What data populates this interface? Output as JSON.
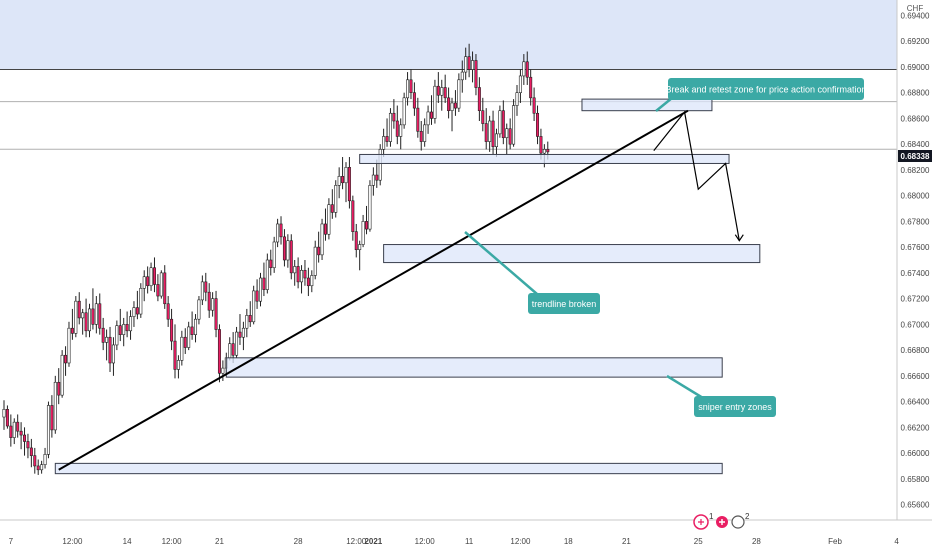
{
  "chart_data": {
    "type": "candlestick",
    "currency": "CHF",
    "y_ticks": [
      "0.69400",
      "0.69200",
      "0.69000",
      "0.68800",
      "0.68600",
      "0.68400",
      "0.68200",
      "0.68000",
      "0.67800",
      "0.67600",
      "0.67400",
      "0.67200",
      "0.67000",
      "0.66800",
      "0.66600",
      "0.66400",
      "0.66200",
      "0.66000",
      "0.65800",
      "0.65600"
    ],
    "ylim": [
      0.6548,
      0.6952
    ],
    "x_ticks": [
      {
        "label": "7",
        "bar": 2
      },
      {
        "label": "12:00",
        "bar": 20
      },
      {
        "label": "14",
        "bar": 36
      },
      {
        "label": "12:00",
        "bar": 49
      },
      {
        "label": "21",
        "bar": 63
      },
      {
        "label": "28",
        "bar": 86
      },
      {
        "label": "12:00",
        "bar": 103
      },
      {
        "label": "2021",
        "bar": 108,
        "bold": true
      },
      {
        "label": "12:00",
        "bar": 123
      },
      {
        "label": "11",
        "bar": 136
      },
      {
        "label": "12:00",
        "bar": 151
      },
      {
        "label": "18",
        "bar": 165
      },
      {
        "label": "21",
        "bar": 182
      },
      {
        "label": "25",
        "bar": 203
      },
      {
        "label": "28",
        "bar": 220
      },
      {
        "label": "Feb",
        "bar": 243
      },
      {
        "label": "4",
        "bar": 261
      }
    ],
    "current_price": "0.68338",
    "horizontal_lines": [
      0.6898,
      0.6873,
      0.6836
    ],
    "resistance_zone": {
      "from": 0.6898,
      "to": 0.6952
    },
    "zones": [
      {
        "x0": 104,
        "x1": 212,
        "y_top": 0.6832,
        "y_bot": 0.6825
      },
      {
        "x0": 169,
        "x1": 207,
        "y_top": 0.6875,
        "y_bot": 0.6866
      },
      {
        "x0": 111,
        "x1": 221,
        "y_top": 0.6762,
        "y_bot": 0.6748
      },
      {
        "x0": 65,
        "x1": 210,
        "y_top": 0.6674,
        "y_bot": 0.6659
      },
      {
        "x0": 15,
        "x1": 210,
        "y_top": 0.6592,
        "y_bot": 0.6584
      }
    ],
    "trendline": {
      "x0": 16,
      "y0": 0.6587,
      "x1": 200,
      "y1": 0.6866
    },
    "projection_path": [
      [
        190,
        0.6835
      ],
      [
        199,
        0.6865
      ],
      [
        203,
        0.6805
      ],
      [
        211,
        0.6825
      ],
      [
        215,
        0.6765
      ]
    ],
    "candles": [
      {
        "o": 0.6628,
        "h": 0.6641,
        "l": 0.6618,
        "c": 0.6634
      },
      {
        "o": 0.6634,
        "h": 0.6637,
        "l": 0.6619,
        "c": 0.6621
      },
      {
        "o": 0.6621,
        "h": 0.663,
        "l": 0.6605,
        "c": 0.6612
      },
      {
        "o": 0.6612,
        "h": 0.6627,
        "l": 0.6607,
        "c": 0.6624
      },
      {
        "o": 0.6624,
        "h": 0.663,
        "l": 0.6612,
        "c": 0.6617
      },
      {
        "o": 0.6617,
        "h": 0.6624,
        "l": 0.6603,
        "c": 0.6614
      },
      {
        "o": 0.6614,
        "h": 0.662,
        "l": 0.6598,
        "c": 0.6609
      },
      {
        "o": 0.6609,
        "h": 0.6615,
        "l": 0.6596,
        "c": 0.6604
      },
      {
        "o": 0.6604,
        "h": 0.6611,
        "l": 0.6589,
        "c": 0.6598
      },
      {
        "o": 0.6598,
        "h": 0.6604,
        "l": 0.6584,
        "c": 0.659
      },
      {
        "o": 0.659,
        "h": 0.6595,
        "l": 0.6583,
        "c": 0.6587
      },
      {
        "o": 0.6587,
        "h": 0.6594,
        "l": 0.6584,
        "c": 0.6591
      },
      {
        "o": 0.6591,
        "h": 0.6604,
        "l": 0.6588,
        "c": 0.6599
      },
      {
        "o": 0.6599,
        "h": 0.664,
        "l": 0.6596,
        "c": 0.6637
      },
      {
        "o": 0.6637,
        "h": 0.6645,
        "l": 0.6612,
        "c": 0.6618
      },
      {
        "o": 0.6618,
        "h": 0.666,
        "l": 0.6615,
        "c": 0.6655
      },
      {
        "o": 0.6655,
        "h": 0.6666,
        "l": 0.6638,
        "c": 0.6645
      },
      {
        "o": 0.6645,
        "h": 0.668,
        "l": 0.6643,
        "c": 0.6676
      },
      {
        "o": 0.6676,
        "h": 0.6683,
        "l": 0.666,
        "c": 0.667
      },
      {
        "o": 0.667,
        "h": 0.6702,
        "l": 0.6667,
        "c": 0.6697
      },
      {
        "o": 0.6697,
        "h": 0.6712,
        "l": 0.6688,
        "c": 0.6693
      },
      {
        "o": 0.6693,
        "h": 0.6722,
        "l": 0.669,
        "c": 0.6718
      },
      {
        "o": 0.6718,
        "h": 0.6725,
        "l": 0.67,
        "c": 0.6705
      },
      {
        "o": 0.6705,
        "h": 0.6712,
        "l": 0.6692,
        "c": 0.6709
      },
      {
        "o": 0.6709,
        "h": 0.672,
        "l": 0.669,
        "c": 0.6695
      },
      {
        "o": 0.6695,
        "h": 0.6716,
        "l": 0.669,
        "c": 0.6712
      },
      {
        "o": 0.6712,
        "h": 0.6728,
        "l": 0.6696,
        "c": 0.67
      },
      {
        "o": 0.67,
        "h": 0.6722,
        "l": 0.6693,
        "c": 0.6716
      },
      {
        "o": 0.6716,
        "h": 0.6724,
        "l": 0.6692,
        "c": 0.6697
      },
      {
        "o": 0.6697,
        "h": 0.6705,
        "l": 0.668,
        "c": 0.6686
      },
      {
        "o": 0.6686,
        "h": 0.6696,
        "l": 0.6672,
        "c": 0.669
      },
      {
        "o": 0.669,
        "h": 0.6698,
        "l": 0.6663,
        "c": 0.667
      },
      {
        "o": 0.667,
        "h": 0.669,
        "l": 0.666,
        "c": 0.6684
      },
      {
        "o": 0.6684,
        "h": 0.6703,
        "l": 0.668,
        "c": 0.6699
      },
      {
        "o": 0.6699,
        "h": 0.6712,
        "l": 0.6687,
        "c": 0.6692
      },
      {
        "o": 0.6692,
        "h": 0.6705,
        "l": 0.6683,
        "c": 0.67
      },
      {
        "o": 0.67,
        "h": 0.671,
        "l": 0.669,
        "c": 0.6695
      },
      {
        "o": 0.6695,
        "h": 0.6711,
        "l": 0.6688,
        "c": 0.6706
      },
      {
        "o": 0.6706,
        "h": 0.6718,
        "l": 0.6698,
        "c": 0.6713
      },
      {
        "o": 0.6713,
        "h": 0.6726,
        "l": 0.6704,
        "c": 0.6708
      },
      {
        "o": 0.6708,
        "h": 0.6732,
        "l": 0.6705,
        "c": 0.6728
      },
      {
        "o": 0.6728,
        "h": 0.6742,
        "l": 0.6718,
        "c": 0.6737
      },
      {
        "o": 0.6737,
        "h": 0.6745,
        "l": 0.6724,
        "c": 0.673
      },
      {
        "o": 0.673,
        "h": 0.6748,
        "l": 0.6726,
        "c": 0.6744
      },
      {
        "o": 0.6744,
        "h": 0.6752,
        "l": 0.6725,
        "c": 0.6731
      },
      {
        "o": 0.6731,
        "h": 0.6739,
        "l": 0.6718,
        "c": 0.6722
      },
      {
        "o": 0.6722,
        "h": 0.6742,
        "l": 0.672,
        "c": 0.674
      },
      {
        "o": 0.674,
        "h": 0.6746,
        "l": 0.6712,
        "c": 0.6716
      },
      {
        "o": 0.6716,
        "h": 0.6722,
        "l": 0.6698,
        "c": 0.6704
      },
      {
        "o": 0.6704,
        "h": 0.6712,
        "l": 0.668,
        "c": 0.6687
      },
      {
        "o": 0.6687,
        "h": 0.67,
        "l": 0.6658,
        "c": 0.6665
      },
      {
        "o": 0.6665,
        "h": 0.6676,
        "l": 0.6658,
        "c": 0.6672
      },
      {
        "o": 0.6672,
        "h": 0.6695,
        "l": 0.6668,
        "c": 0.669
      },
      {
        "o": 0.669,
        "h": 0.6697,
        "l": 0.6677,
        "c": 0.6682
      },
      {
        "o": 0.6682,
        "h": 0.6702,
        "l": 0.668,
        "c": 0.6698
      },
      {
        "o": 0.6698,
        "h": 0.671,
        "l": 0.6688,
        "c": 0.6692
      },
      {
        "o": 0.6692,
        "h": 0.6708,
        "l": 0.6686,
        "c": 0.6704
      },
      {
        "o": 0.6704,
        "h": 0.6722,
        "l": 0.67,
        "c": 0.6719
      },
      {
        "o": 0.6719,
        "h": 0.6738,
        "l": 0.6715,
        "c": 0.6733
      },
      {
        "o": 0.6733,
        "h": 0.674,
        "l": 0.6718,
        "c": 0.6725
      },
      {
        "o": 0.6725,
        "h": 0.6732,
        "l": 0.6705,
        "c": 0.6711
      },
      {
        "o": 0.6711,
        "h": 0.6725,
        "l": 0.6706,
        "c": 0.672
      },
      {
        "o": 0.672,
        "h": 0.6726,
        "l": 0.669,
        "c": 0.6696
      },
      {
        "o": 0.6696,
        "h": 0.67,
        "l": 0.6655,
        "c": 0.6662
      },
      {
        "o": 0.6662,
        "h": 0.6672,
        "l": 0.6656,
        "c": 0.6666
      },
      {
        "o": 0.6666,
        "h": 0.6678,
        "l": 0.666,
        "c": 0.6674
      },
      {
        "o": 0.6674,
        "h": 0.669,
        "l": 0.6672,
        "c": 0.6685
      },
      {
        "o": 0.6685,
        "h": 0.6694,
        "l": 0.667,
        "c": 0.6676
      },
      {
        "o": 0.6676,
        "h": 0.6698,
        "l": 0.6674,
        "c": 0.6694
      },
      {
        "o": 0.6694,
        "h": 0.6708,
        "l": 0.6684,
        "c": 0.669
      },
      {
        "o": 0.669,
        "h": 0.6702,
        "l": 0.668,
        "c": 0.6697
      },
      {
        "o": 0.6697,
        "h": 0.6712,
        "l": 0.669,
        "c": 0.6707
      },
      {
        "o": 0.6707,
        "h": 0.6718,
        "l": 0.6698,
        "c": 0.6702
      },
      {
        "o": 0.6702,
        "h": 0.673,
        "l": 0.67,
        "c": 0.6726
      },
      {
        "o": 0.6726,
        "h": 0.6735,
        "l": 0.6712,
        "c": 0.6718
      },
      {
        "o": 0.6718,
        "h": 0.674,
        "l": 0.6714,
        "c": 0.6736
      },
      {
        "o": 0.6736,
        "h": 0.6748,
        "l": 0.6722,
        "c": 0.6727
      },
      {
        "o": 0.6727,
        "h": 0.6755,
        "l": 0.6724,
        "c": 0.675
      },
      {
        "o": 0.675,
        "h": 0.6758,
        "l": 0.6738,
        "c": 0.6744
      },
      {
        "o": 0.6744,
        "h": 0.6768,
        "l": 0.674,
        "c": 0.6764
      },
      {
        "o": 0.6764,
        "h": 0.6782,
        "l": 0.676,
        "c": 0.6778
      },
      {
        "o": 0.6778,
        "h": 0.6784,
        "l": 0.6762,
        "c": 0.6768
      },
      {
        "o": 0.6768,
        "h": 0.6774,
        "l": 0.6745,
        "c": 0.675
      },
      {
        "o": 0.675,
        "h": 0.677,
        "l": 0.6744,
        "c": 0.6765
      },
      {
        "o": 0.6765,
        "h": 0.677,
        "l": 0.6735,
        "c": 0.674
      },
      {
        "o": 0.674,
        "h": 0.675,
        "l": 0.673,
        "c": 0.6745
      },
      {
        "o": 0.6745,
        "h": 0.6752,
        "l": 0.6728,
        "c": 0.6733
      },
      {
        "o": 0.6733,
        "h": 0.6746,
        "l": 0.6724,
        "c": 0.6742
      },
      {
        "o": 0.6742,
        "h": 0.675,
        "l": 0.673,
        "c": 0.6736
      },
      {
        "o": 0.6736,
        "h": 0.6744,
        "l": 0.6722,
        "c": 0.673
      },
      {
        "o": 0.673,
        "h": 0.6742,
        "l": 0.6725,
        "c": 0.6738
      },
      {
        "o": 0.6738,
        "h": 0.6765,
        "l": 0.6735,
        "c": 0.676
      },
      {
        "o": 0.676,
        "h": 0.6772,
        "l": 0.6748,
        "c": 0.6754
      },
      {
        "o": 0.6754,
        "h": 0.6782,
        "l": 0.675,
        "c": 0.6778
      },
      {
        "o": 0.6778,
        "h": 0.679,
        "l": 0.6765,
        "c": 0.677
      },
      {
        "o": 0.677,
        "h": 0.6798,
        "l": 0.6766,
        "c": 0.6793
      },
      {
        "o": 0.6793,
        "h": 0.6805,
        "l": 0.6782,
        "c": 0.6787
      },
      {
        "o": 0.6787,
        "h": 0.6812,
        "l": 0.6783,
        "c": 0.6808
      },
      {
        "o": 0.6808,
        "h": 0.6822,
        "l": 0.6798,
        "c": 0.6815
      },
      {
        "o": 0.6815,
        "h": 0.683,
        "l": 0.6805,
        "c": 0.681
      },
      {
        "o": 0.681,
        "h": 0.6826,
        "l": 0.6795,
        "c": 0.6822
      },
      {
        "o": 0.6822,
        "h": 0.683,
        "l": 0.679,
        "c": 0.6796
      },
      {
        "o": 0.6796,
        "h": 0.68,
        "l": 0.6765,
        "c": 0.6772
      },
      {
        "o": 0.6772,
        "h": 0.6778,
        "l": 0.6752,
        "c": 0.6758
      },
      {
        "o": 0.6758,
        "h": 0.6765,
        "l": 0.6742,
        "c": 0.6762
      },
      {
        "o": 0.6762,
        "h": 0.6785,
        "l": 0.676,
        "c": 0.678
      },
      {
        "o": 0.678,
        "h": 0.6792,
        "l": 0.677,
        "c": 0.6774
      },
      {
        "o": 0.6774,
        "h": 0.6812,
        "l": 0.6772,
        "c": 0.6808
      },
      {
        "o": 0.6808,
        "h": 0.6822,
        "l": 0.68,
        "c": 0.6816
      },
      {
        "o": 0.6816,
        "h": 0.6828,
        "l": 0.6806,
        "c": 0.6812
      },
      {
        "o": 0.6812,
        "h": 0.684,
        "l": 0.6808,
        "c": 0.6836
      },
      {
        "o": 0.6836,
        "h": 0.6852,
        "l": 0.683,
        "c": 0.6846
      },
      {
        "o": 0.6846,
        "h": 0.686,
        "l": 0.6838,
        "c": 0.6842
      },
      {
        "o": 0.6842,
        "h": 0.6868,
        "l": 0.6838,
        "c": 0.6864
      },
      {
        "o": 0.6864,
        "h": 0.6875,
        "l": 0.6852,
        "c": 0.6858
      },
      {
        "o": 0.6858,
        "h": 0.687,
        "l": 0.684,
        "c": 0.6846
      },
      {
        "o": 0.6846,
        "h": 0.686,
        "l": 0.6836,
        "c": 0.6855
      },
      {
        "o": 0.6855,
        "h": 0.688,
        "l": 0.6852,
        "c": 0.6876
      },
      {
        "o": 0.6876,
        "h": 0.6896,
        "l": 0.687,
        "c": 0.689
      },
      {
        "o": 0.689,
        "h": 0.6898,
        "l": 0.6875,
        "c": 0.688
      },
      {
        "o": 0.688,
        "h": 0.6888,
        "l": 0.6862,
        "c": 0.6868
      },
      {
        "o": 0.6868,
        "h": 0.6876,
        "l": 0.6845,
        "c": 0.685
      },
      {
        "o": 0.685,
        "h": 0.6858,
        "l": 0.6835,
        "c": 0.6842
      },
      {
        "o": 0.6842,
        "h": 0.686,
        "l": 0.6838,
        "c": 0.6855
      },
      {
        "o": 0.6855,
        "h": 0.687,
        "l": 0.6848,
        "c": 0.6865
      },
      {
        "o": 0.6865,
        "h": 0.6878,
        "l": 0.6855,
        "c": 0.686
      },
      {
        "o": 0.686,
        "h": 0.689,
        "l": 0.6856,
        "c": 0.6885
      },
      {
        "o": 0.6885,
        "h": 0.6896,
        "l": 0.6872,
        "c": 0.6878
      },
      {
        "o": 0.6878,
        "h": 0.689,
        "l": 0.6866,
        "c": 0.6884
      },
      {
        "o": 0.6884,
        "h": 0.6894,
        "l": 0.6872,
        "c": 0.6876
      },
      {
        "o": 0.6876,
        "h": 0.6884,
        "l": 0.686,
        "c": 0.6866
      },
      {
        "o": 0.6866,
        "h": 0.6876,
        "l": 0.685,
        "c": 0.6872
      },
      {
        "o": 0.6872,
        "h": 0.6882,
        "l": 0.6862,
        "c": 0.6868
      },
      {
        "o": 0.6868,
        "h": 0.6895,
        "l": 0.6865,
        "c": 0.689
      },
      {
        "o": 0.689,
        "h": 0.6905,
        "l": 0.688,
        "c": 0.6896
      },
      {
        "o": 0.6896,
        "h": 0.6915,
        "l": 0.689,
        "c": 0.6908
      },
      {
        "o": 0.6908,
        "h": 0.6918,
        "l": 0.6892,
        "c": 0.6898
      },
      {
        "o": 0.6898,
        "h": 0.6912,
        "l": 0.6888,
        "c": 0.6905
      },
      {
        "o": 0.6905,
        "h": 0.691,
        "l": 0.6878,
        "c": 0.6884
      },
      {
        "o": 0.6884,
        "h": 0.6892,
        "l": 0.6858,
        "c": 0.6866
      },
      {
        "o": 0.6866,
        "h": 0.6876,
        "l": 0.685,
        "c": 0.6856
      },
      {
        "o": 0.6856,
        "h": 0.6868,
        "l": 0.6836,
        "c": 0.6842
      },
      {
        "o": 0.6842,
        "h": 0.6862,
        "l": 0.6834,
        "c": 0.6858
      },
      {
        "o": 0.6858,
        "h": 0.6866,
        "l": 0.6832,
        "c": 0.6838
      },
      {
        "o": 0.6838,
        "h": 0.6852,
        "l": 0.683,
        "c": 0.6848
      },
      {
        "o": 0.6848,
        "h": 0.687,
        "l": 0.6845,
        "c": 0.6866
      },
      {
        "o": 0.6866,
        "h": 0.6874,
        "l": 0.684,
        "c": 0.6845
      },
      {
        "o": 0.6845,
        "h": 0.6856,
        "l": 0.6832,
        "c": 0.6852
      },
      {
        "o": 0.6852,
        "h": 0.686,
        "l": 0.6836,
        "c": 0.684
      },
      {
        "o": 0.684,
        "h": 0.6875,
        "l": 0.6838,
        "c": 0.687
      },
      {
        "o": 0.687,
        "h": 0.6886,
        "l": 0.6862,
        "c": 0.688
      },
      {
        "o": 0.688,
        "h": 0.6898,
        "l": 0.6872,
        "c": 0.6893
      },
      {
        "o": 0.6893,
        "h": 0.691,
        "l": 0.6886,
        "c": 0.6904
      },
      {
        "o": 0.6904,
        "h": 0.6912,
        "l": 0.6886,
        "c": 0.6892
      },
      {
        "o": 0.6892,
        "h": 0.6898,
        "l": 0.687,
        "c": 0.6876
      },
      {
        "o": 0.6876,
        "h": 0.6884,
        "l": 0.6858,
        "c": 0.6864
      },
      {
        "o": 0.6864,
        "h": 0.687,
        "l": 0.684,
        "c": 0.6846
      },
      {
        "o": 0.6846,
        "h": 0.6852,
        "l": 0.6828,
        "c": 0.6833
      },
      {
        "o": 0.6833,
        "h": 0.684,
        "l": 0.6822,
        "c": 0.6836
      },
      {
        "o": 0.6836,
        "h": 0.6842,
        "l": 0.6828,
        "c": 0.6834
      }
    ]
  },
  "annotations": [
    {
      "text": "Break and retest zone for price action confirmation"
    },
    {
      "text": "trendline broken"
    },
    {
      "text": "sniper entry zones"
    }
  ],
  "colors": {
    "bull": "#ffffff",
    "bear": "#e91e63",
    "wick": "#222222",
    "zone_fill": "#dce6f9",
    "zone_stroke": "#3a3f4d",
    "resistance_fill": "#dde6f8",
    "callout": "#3ba9a5",
    "trendline": "#000000",
    "price_tag": "#131722"
  },
  "toolbar": {
    "alert_badge": "1",
    "indicator_badge": "2"
  }
}
